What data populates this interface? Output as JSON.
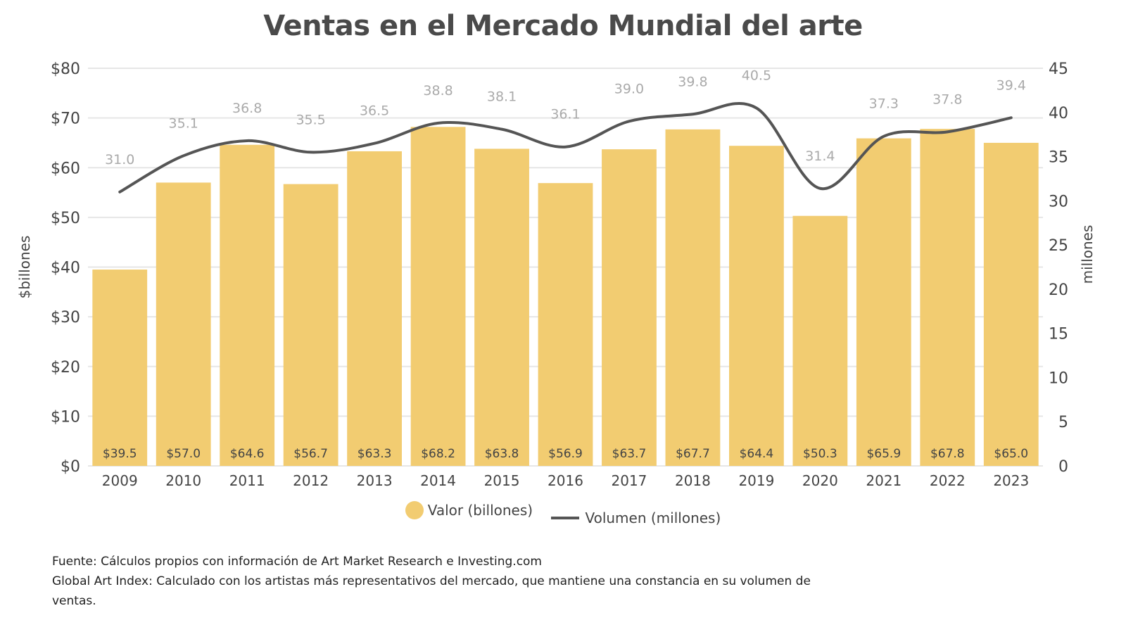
{
  "colors": {
    "bar": "#F2CC71",
    "line": "#555555",
    "grid": "#e6e6e6",
    "line_label": "#aaaaaa",
    "bar_label": "#444444"
  },
  "chart_data": {
    "type": "bar",
    "title": "Ventas en el Mercado Mundial del arte",
    "categories": [
      "2009",
      "2010",
      "2011",
      "2012",
      "2013",
      "2014",
      "2015",
      "2016",
      "2017",
      "2018",
      "2019",
      "2020",
      "2021",
      "2022",
      "2023"
    ],
    "series": [
      {
        "name": "Valor (billones)",
        "type": "bar",
        "axis": "left",
        "values": [
          39.5,
          57.0,
          64.6,
          56.7,
          63.3,
          68.2,
          63.8,
          56.9,
          63.7,
          67.7,
          64.4,
          50.3,
          65.9,
          67.8,
          65.0
        ],
        "labels": [
          "$39.5",
          "$57.0",
          "$64.6",
          "$56.7",
          "$63.3",
          "$68.2",
          "$63.8",
          "$56.9",
          "$63.7",
          "$67.7",
          "$64.4",
          "$50.3",
          "$65.9",
          "$67.8",
          "$65.0"
        ]
      },
      {
        "name": "Volumen (millones)",
        "type": "line",
        "axis": "right",
        "values": [
          31.0,
          35.1,
          36.8,
          35.5,
          36.5,
          38.8,
          38.1,
          36.1,
          39.0,
          39.8,
          40.5,
          31.4,
          37.3,
          37.8,
          39.4
        ],
        "labels": [
          "31.0",
          "35.1",
          "36.8",
          "35.5",
          "36.5",
          "38.8",
          "38.1",
          "36.1",
          "39.0",
          "39.8",
          "40.5",
          "31.4",
          "37.3",
          "37.8",
          "39.4"
        ]
      }
    ],
    "ylabel": "$billones",
    "ylim": [
      0,
      80
    ],
    "yticks": [
      "$0",
      "$10",
      "$20",
      "$30",
      "$40",
      "$50",
      "$60",
      "$70",
      "$80"
    ],
    "y2label": "millones",
    "y2lim": [
      0,
      45
    ],
    "y2ticks": [
      "0",
      "5",
      "10",
      "15",
      "20",
      "25",
      "30",
      "35",
      "40",
      "45"
    ],
    "grid": true,
    "legend_position": "bottom"
  },
  "legend": {
    "bar_label": "Valor (billones)",
    "line_label": "Volumen (millones)"
  },
  "footnotes": {
    "source": "Fuente: Cálculos propios con información de Art Market Research e Investing.com",
    "note": "Global Art Index: Calculado con los artistas más representativos del mercado, que mantiene una constancia en su volumen de ventas."
  }
}
